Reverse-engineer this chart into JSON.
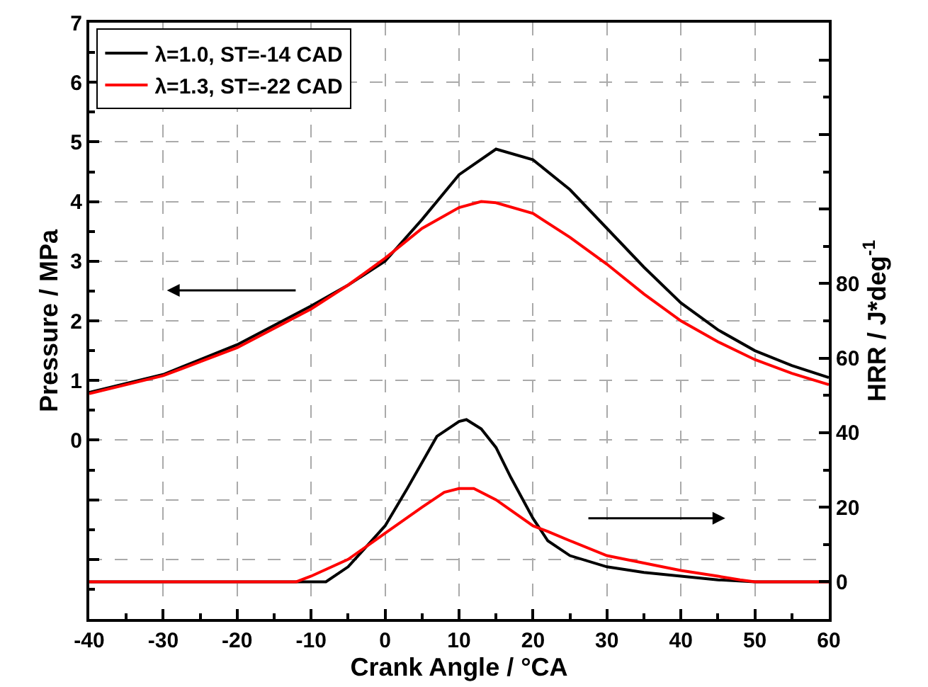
{
  "chart_data": {
    "type": "line",
    "xlabel": "Crank Angle / °CA",
    "ylabel": "Pressure / MPa",
    "y2label": "HRR / J*deg$^{-1}$",
    "xlim": [
      -40,
      60
    ],
    "xticks": [
      -40,
      -30,
      -20,
      -10,
      0,
      10,
      20,
      30,
      40,
      50,
      60
    ],
    "ylim": [
      -3,
      7
    ],
    "yticks": [
      {
        "value": -3,
        "label": null
      },
      {
        "value": -2,
        "label": null
      },
      {
        "value": -1,
        "label": null
      },
      0,
      1,
      2,
      3,
      4,
      5,
      6,
      7
    ],
    "y2lim": [
      -10,
      150
    ],
    "y2ticks": [
      0,
      20,
      40,
      60,
      80,
      {
        "value": 100,
        "label": null
      },
      {
        "value": 120,
        "label": null
      },
      {
        "value": 140,
        "label": null
      }
    ],
    "grid": true,
    "legend": "top left",
    "marker": "none",
    "line_style": "solid",
    "series": [
      {
        "name": "λ=1.0, ST=-14 CAD",
        "color": "#000000",
        "x": [
          -40,
          -30,
          -20,
          -10,
          -5,
          0,
          5,
          10,
          15,
          20,
          25,
          30,
          35,
          40,
          45,
          50,
          55,
          60
        ],
        "values": [
          0.8,
          1.1,
          1.6,
          2.25,
          2.6,
          3.0,
          3.7,
          4.45,
          4.88,
          4.7,
          4.2,
          3.55,
          2.9,
          2.3,
          1.85,
          1.5,
          1.25,
          1.05
        ]
      },
      {
        "name": "λ=1.3, ST=-22 CAD",
        "color": "#ff0000",
        "x": [
          -40,
          -30,
          -20,
          -10,
          -5,
          0,
          5,
          10,
          13,
          15,
          20,
          25,
          30,
          35,
          40,
          45,
          50,
          55,
          60
        ],
        "values": [
          0.78,
          1.08,
          1.55,
          2.2,
          2.6,
          3.05,
          3.55,
          3.9,
          4.0,
          3.98,
          3.8,
          3.4,
          2.95,
          2.45,
          2.0,
          1.65,
          1.35,
          1.12,
          0.93
        ]
      },
      {
        "color": "#000000",
        "axis": "y2",
        "x": [
          -40,
          -30,
          -20,
          -10,
          -8,
          -5,
          0,
          3,
          5,
          7,
          10,
          11,
          13,
          15,
          17,
          20,
          22,
          25,
          30,
          35,
          40,
          45,
          50,
          60
        ],
        "values": [
          0,
          0,
          0,
          0,
          0,
          4,
          15,
          25,
          32,
          39,
          43,
          43.5,
          41,
          36,
          28,
          17,
          11,
          7,
          4,
          2.5,
          1.5,
          0.5,
          0,
          0
        ]
      },
      {
        "color": "#ff0000",
        "axis": "y2",
        "x": [
          -40,
          -30,
          -20,
          -12,
          -10,
          -5,
          0,
          5,
          8,
          10,
          12,
          15,
          20,
          22,
          25,
          30,
          35,
          40,
          45,
          48,
          50,
          60
        ],
        "values": [
          0,
          0,
          0,
          0,
          1.5,
          6,
          13,
          20,
          24,
          25,
          25,
          22,
          15,
          13.5,
          11,
          7,
          5,
          3,
          1.5,
          0.5,
          0,
          0
        ]
      }
    ]
  }
}
